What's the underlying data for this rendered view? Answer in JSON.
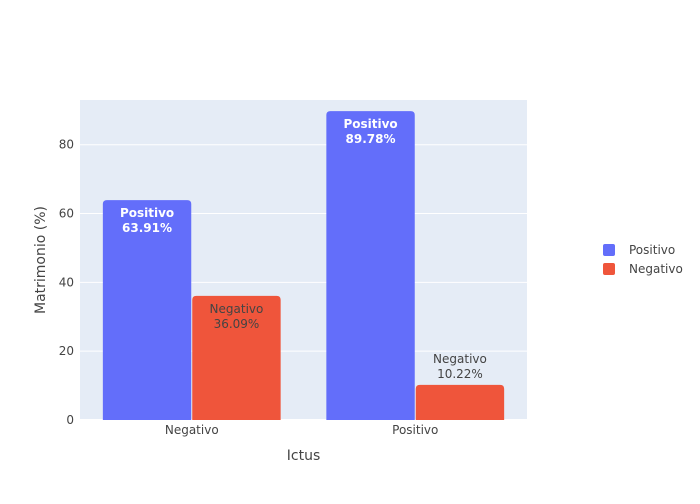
{
  "chart_data": {
    "type": "bar",
    "title": "",
    "xlabel": "Ictus",
    "ylabel": "Matrimonio (%)",
    "categories": [
      "Negativo",
      "Positivo"
    ],
    "ylim": [
      0,
      93
    ],
    "yticks": [
      0,
      20,
      40,
      60,
      80
    ],
    "grid": true,
    "legend": "right",
    "series": [
      {
        "name": "Positivo",
        "color": "#636efa",
        "values": [
          63.91,
          89.78
        ],
        "labels": [
          "Positivo<br>63.91%",
          "Positivo<br>89.78%"
        ]
      },
      {
        "name": "Negativo",
        "color": "#ef553b",
        "values": [
          36.09,
          10.22
        ],
        "labels": [
          "Negativo<br>36.09%",
          "Negativo<br>10.22%"
        ]
      }
    ]
  }
}
